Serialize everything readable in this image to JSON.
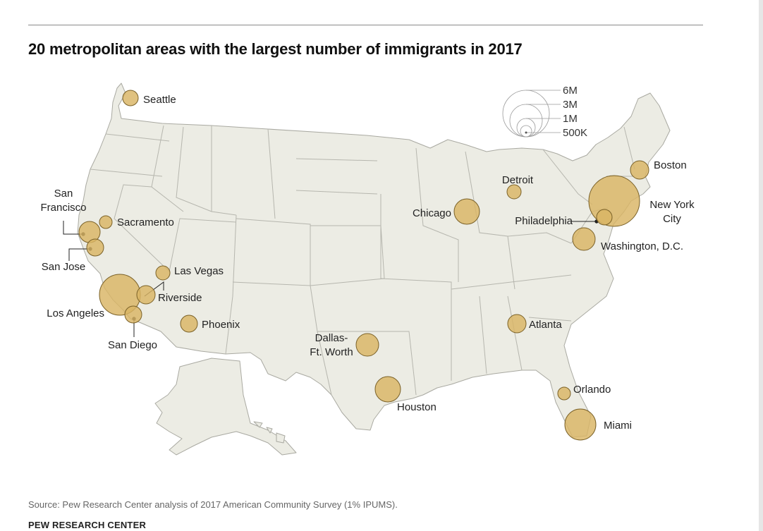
{
  "title": "20 metropolitan areas with the largest number of immigrants in 2017",
  "source": "Source: Pew Research Center analysis of 2017 American Community Survey (1% IPUMS).",
  "organization": "PEW RESEARCH CENTER",
  "colors": {
    "land": "#ecece4",
    "border": "#a9a9a1",
    "bubble_fill": "#d9b564",
    "bubble_stroke": "#7a6128",
    "text": "#222222"
  },
  "legend": {
    "labels": [
      "6M",
      "3M",
      "1M",
      "500K"
    ]
  },
  "metros": [
    {
      "name": "Seattle",
      "label_lines": [
        "Seattle"
      ]
    },
    {
      "name": "San Francisco",
      "label_lines": [
        "San",
        "Francisco"
      ]
    },
    {
      "name": "Sacramento",
      "label_lines": [
        "Sacramento"
      ]
    },
    {
      "name": "San Jose",
      "label_lines": [
        "San Jose"
      ]
    },
    {
      "name": "Las Vegas",
      "label_lines": [
        "Las Vegas"
      ]
    },
    {
      "name": "Riverside",
      "label_lines": [
        "Riverside"
      ]
    },
    {
      "name": "Los Angeles",
      "label_lines": [
        "Los Angeles"
      ]
    },
    {
      "name": "San Diego",
      "label_lines": [
        "San Diego"
      ]
    },
    {
      "name": "Phoenix",
      "label_lines": [
        "Phoenix"
      ]
    },
    {
      "name": "Dallas-Ft. Worth",
      "label_lines": [
        "Dallas-",
        "Ft. Worth"
      ]
    },
    {
      "name": "Houston",
      "label_lines": [
        "Houston"
      ]
    },
    {
      "name": "Chicago",
      "label_lines": [
        "Chicago"
      ]
    },
    {
      "name": "Detroit",
      "label_lines": [
        "Detroit"
      ]
    },
    {
      "name": "Atlanta",
      "label_lines": [
        "Atlanta"
      ]
    },
    {
      "name": "Orlando",
      "label_lines": [
        "Orlando"
      ]
    },
    {
      "name": "Miami",
      "label_lines": [
        "Miami"
      ]
    },
    {
      "name": "Boston",
      "label_lines": [
        "Boston"
      ]
    },
    {
      "name": "New York City",
      "label_lines": [
        "New York",
        "City"
      ]
    },
    {
      "name": "Philadelphia",
      "label_lines": [
        "Philadelphia"
      ]
    },
    {
      "name": "Washington, D.C.",
      "label_lines": [
        "Washington, D.C."
      ]
    }
  ]
}
